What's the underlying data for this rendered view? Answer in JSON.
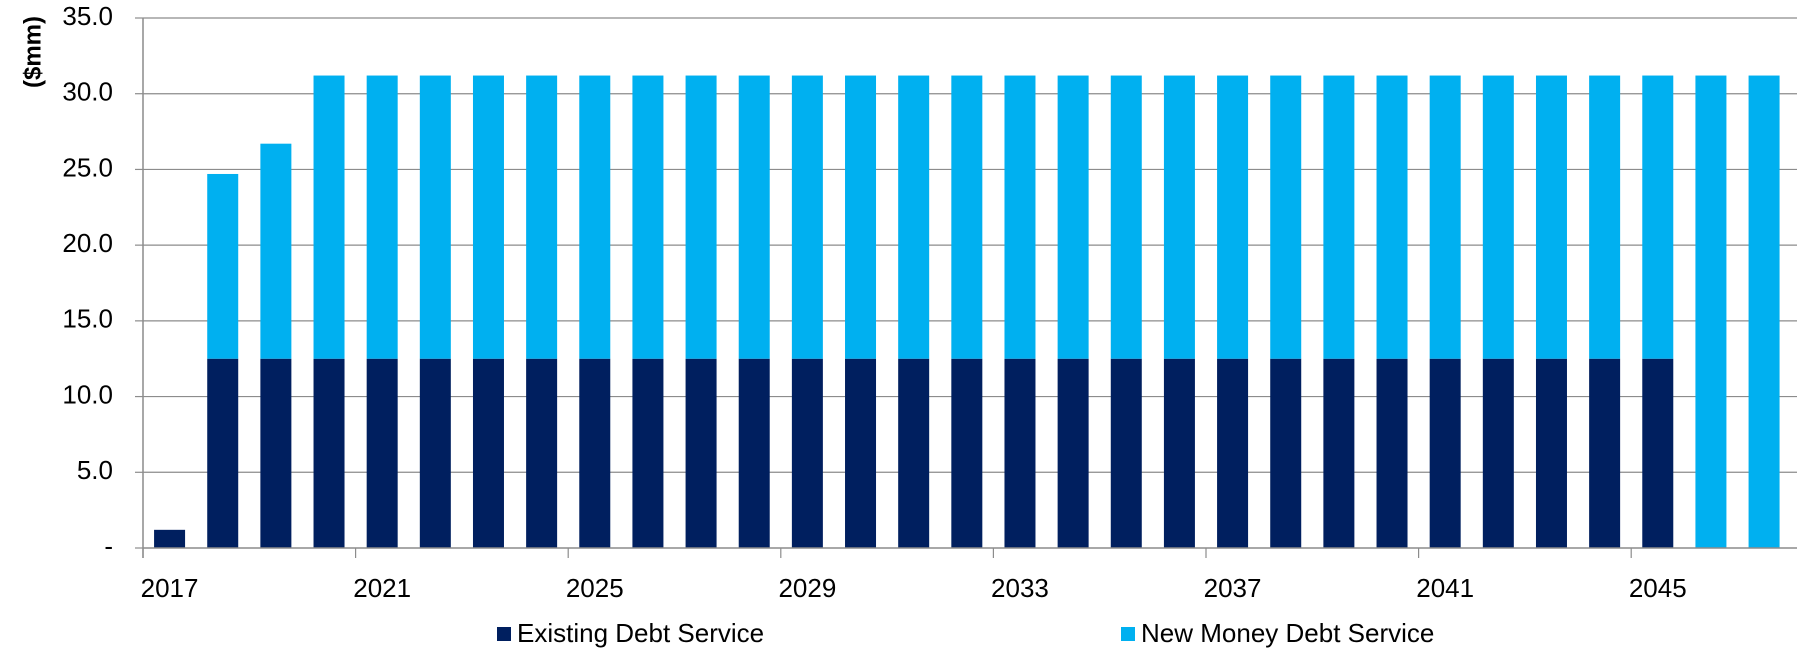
{
  "chart_data": {
    "type": "bar",
    "stacked": true,
    "title": "",
    "xlabel": "",
    "ylabel": "($mm)",
    "ylim": [
      0,
      35
    ],
    "y_ticks": [
      0,
      5,
      10,
      15,
      20,
      25,
      30,
      35
    ],
    "y_tick_labels": [
      "-",
      "5.0",
      "10.0",
      "15.0",
      "20.0",
      "25.0",
      "30.0",
      "35.0"
    ],
    "x_tick_labels": [
      "2017",
      "2021",
      "2025",
      "2029",
      "2033",
      "2037",
      "2041",
      "2045"
    ],
    "categories": [
      "2017",
      "2018",
      "2019",
      "2020",
      "2021",
      "2022",
      "2023",
      "2024",
      "2025",
      "2026",
      "2027",
      "2028",
      "2029",
      "2030",
      "2031",
      "2032",
      "2033",
      "2034",
      "2035",
      "2036",
      "2037",
      "2038",
      "2039",
      "2040",
      "2041",
      "2042",
      "2043",
      "2044",
      "2045",
      "2046",
      "2047"
    ],
    "series": [
      {
        "name": "Existing Debt Service",
        "color": "#001f5f",
        "values": [
          1.2,
          12.5,
          12.5,
          12.5,
          12.5,
          12.5,
          12.5,
          12.5,
          12.5,
          12.5,
          12.5,
          12.5,
          12.5,
          12.5,
          12.5,
          12.5,
          12.5,
          12.5,
          12.5,
          12.5,
          12.5,
          12.5,
          12.5,
          12.5,
          12.5,
          12.5,
          12.5,
          12.5,
          12.5,
          0,
          0
        ]
      },
      {
        "name": "New Money Debt Service",
        "color": "#00b0f0",
        "values": [
          0,
          12.2,
          14.2,
          18.7,
          18.7,
          18.7,
          18.7,
          18.7,
          18.7,
          18.7,
          18.7,
          18.7,
          18.7,
          18.7,
          18.7,
          18.7,
          18.7,
          18.7,
          18.7,
          18.7,
          18.7,
          18.7,
          18.7,
          18.7,
          18.7,
          18.7,
          18.7,
          18.7,
          18.7,
          31.2,
          31.2
        ]
      }
    ],
    "grid": true,
    "legend_position": "bottom"
  }
}
